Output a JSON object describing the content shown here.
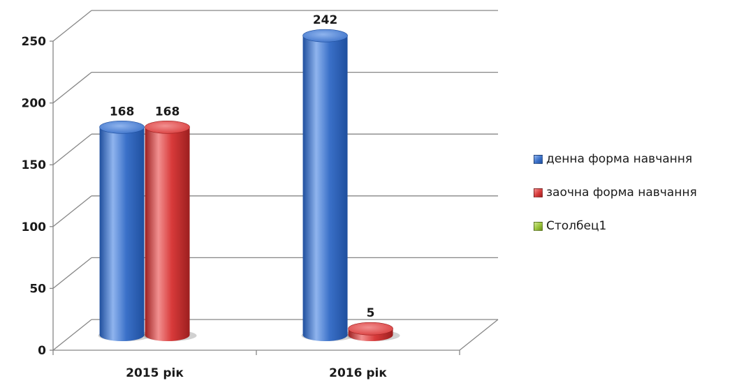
{
  "chart_data": {
    "type": "bar",
    "style": "3d-cylinder",
    "categories": [
      "2015 рік",
      "2016 рік"
    ],
    "series": [
      {
        "name": "денна форма навчання",
        "values": [
          168,
          242
        ],
        "color": "#3a70c8",
        "color_dark": "#1f4f9e",
        "color_light": "#8fb4ee"
      },
      {
        "name": "заочна форма навчання",
        "values": [
          168,
          5
        ],
        "color": "#d83a3a",
        "color_dark": "#9c1f1f",
        "color_light": "#f29090"
      },
      {
        "name": "Столбец1",
        "values": [
          null,
          null
        ],
        "color": "#9ac43a",
        "color_dark": "#6a8f1f",
        "color_light": "#cde690"
      }
    ],
    "ylim": [
      0,
      250
    ],
    "yticks": [
      "0",
      "50",
      "100",
      "150",
      "200",
      "250"
    ],
    "ytick_values": [
      0,
      50,
      100,
      150,
      200,
      250
    ],
    "grid": true,
    "legend_position": "right"
  }
}
